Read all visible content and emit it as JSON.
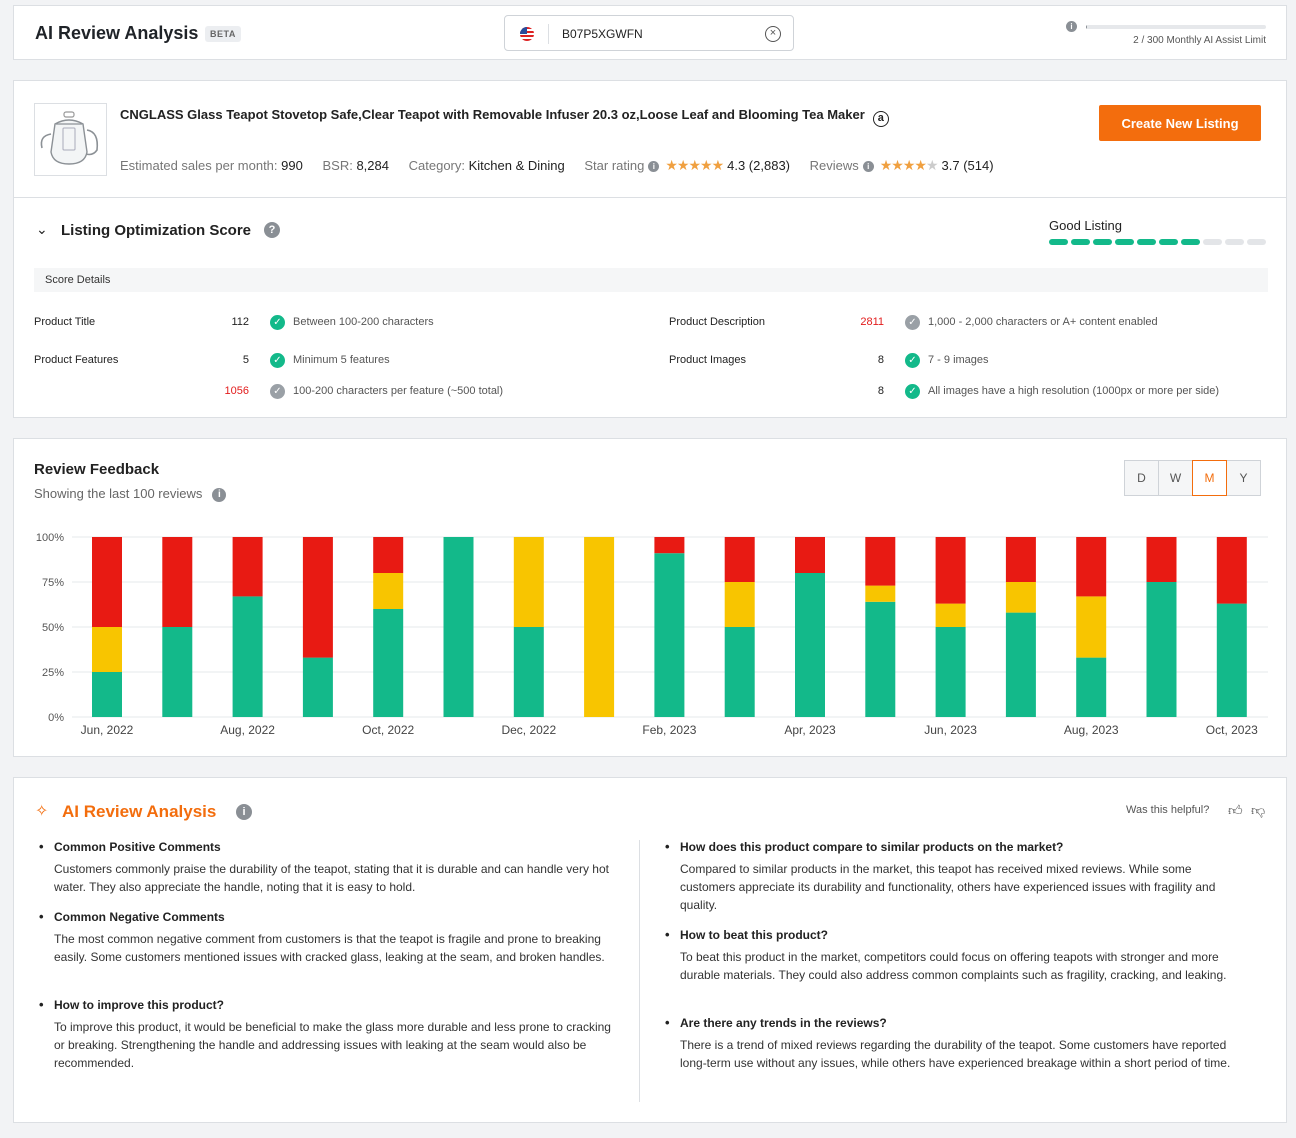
{
  "header": {
    "title": "AI Review Analysis",
    "badge": "BETA",
    "search_value": "B07P5XGWFN",
    "limit_text": "2 / 300 Monthly AI Assist Limit",
    "limit_fraction": 0.0067
  },
  "product": {
    "title": "CNGLASS Glass Teapot Stovetop Safe,Clear Teapot with Removable Infuser 20.3 oz,Loose Leaf and Blooming Tea Maker",
    "create_button": "Create New Listing",
    "sales_label": "Estimated sales per month:",
    "sales_value": "990",
    "bsr_label": "BSR:",
    "bsr_value": "8,284",
    "category_label": "Category:",
    "category_value": "Kitchen & Dining",
    "star_label": "Star rating",
    "star_value": "4.3 (2,883)",
    "star_rating": 4.3,
    "reviews_label": "Reviews",
    "reviews_value": "3.7 (514)",
    "reviews_rating": 3.7
  },
  "optimization": {
    "title": "Listing Optimization Score",
    "status": "Good Listing",
    "score_segments_on": 7,
    "score_segments_total": 10,
    "details_header": "Score Details",
    "rows": [
      {
        "label": "Product Title",
        "value": "112",
        "red": false,
        "ok": true,
        "desc": "Between 100-200 characters"
      },
      {
        "label": "Product Features",
        "value": "5",
        "red": false,
        "ok": true,
        "desc": "Minimum 5 features"
      },
      {
        "label": "",
        "value": "1056",
        "red": true,
        "ok": false,
        "desc": "100-200 characters per feature (~500 total)"
      },
      {
        "label": "Product Description",
        "value": "2811",
        "red": true,
        "ok": false,
        "desc": "1,000 - 2,000 characters or A+ content enabled"
      },
      {
        "label": "Product Images",
        "value": "8",
        "red": false,
        "ok": true,
        "desc": "7 - 9 images"
      },
      {
        "label": "",
        "value": "8",
        "red": false,
        "ok": true,
        "desc": "All images have a high resolution (1000px or more per side)"
      }
    ]
  },
  "feedback": {
    "title": "Review Feedback",
    "subtitle": "Showing the last 100 reviews",
    "periods": [
      "D",
      "W",
      "M",
      "Y"
    ],
    "active_period": "M"
  },
  "chart_data": {
    "type": "bar",
    "stacked": true,
    "categories": [
      "Jun, 2022",
      "Jul, 2022",
      "Aug, 2022",
      "Sep, 2022",
      "Oct, 2022",
      "Nov, 2022",
      "Dec, 2022",
      "Jan, 2023",
      "Feb, 2023",
      "Mar, 2023",
      "Apr, 2023",
      "May, 2023",
      "Jun, 2023",
      "Jul, 2023",
      "Aug, 2023",
      "Sep, 2023",
      "Oct, 2023"
    ],
    "x_tick_labels": [
      "Jun, 2022",
      "Aug, 2022",
      "Oct, 2022",
      "Dec, 2022",
      "Feb, 2023",
      "Apr, 2023",
      "Jun, 2023",
      "Aug, 2023",
      "Oct, 2023"
    ],
    "y_ticks": [
      "0%",
      "25%",
      "50%",
      "75%",
      "100%"
    ],
    "ylim": [
      0,
      100
    ],
    "grid": true,
    "series": [
      {
        "color": "#13b98a",
        "values": [
          25,
          50,
          67,
          33,
          60,
          100,
          50,
          0,
          91,
          50,
          80,
          64,
          50,
          58,
          33,
          75,
          63
        ]
      },
      {
        "color": "#f8c500",
        "values": [
          25,
          0,
          0,
          0,
          20,
          0,
          50,
          100,
          0,
          25,
          0,
          9,
          13,
          17,
          34,
          0,
          0
        ]
      },
      {
        "color": "#e81a13",
        "values": [
          50,
          50,
          33,
          67,
          20,
          0,
          0,
          0,
          9,
          25,
          20,
          27,
          37,
          25,
          33,
          25,
          37
        ]
      }
    ]
  },
  "ai": {
    "title": "AI Review Analysis",
    "helpful": "Was this helpful?",
    "left": [
      {
        "q": "Common Positive Comments",
        "a": "Customers commonly praise the durability of the teapot, stating that it is durable and can handle very hot water. They also appreciate the handle, noting that it is easy to hold."
      },
      {
        "q": "Common Negative Comments",
        "a": "The most common negative comment from customers is that the teapot is fragile and prone to breaking easily. Some customers mentioned issues with cracked glass, leaking at the seam, and broken handles."
      },
      {
        "q": "How to improve this product?",
        "a": "To improve this product, it would be beneficial to make the glass more durable and less prone to cracking or breaking. Strengthening the handle and addressing issues with leaking at the seam would also be recommended."
      }
    ],
    "right": [
      {
        "q": "How does this product compare to similar products on the market?",
        "a": "Compared to similar products in the market, this teapot has received mixed reviews. While some customers appreciate its durability and functionality, others have experienced issues with fragility and quality."
      },
      {
        "q": "How to beat this product?",
        "a": "To beat this product in the market, competitors could focus on offering teapots with stronger and more durable materials. They could also address common complaints such as fragility, cracking, and leaking."
      },
      {
        "q": "Are there any trends in the reviews?",
        "a": "There is a trend of mixed reviews regarding the durability of the teapot. Some customers have reported long-term use without any issues, while others have experienced breakage within a short period of time."
      }
    ]
  }
}
